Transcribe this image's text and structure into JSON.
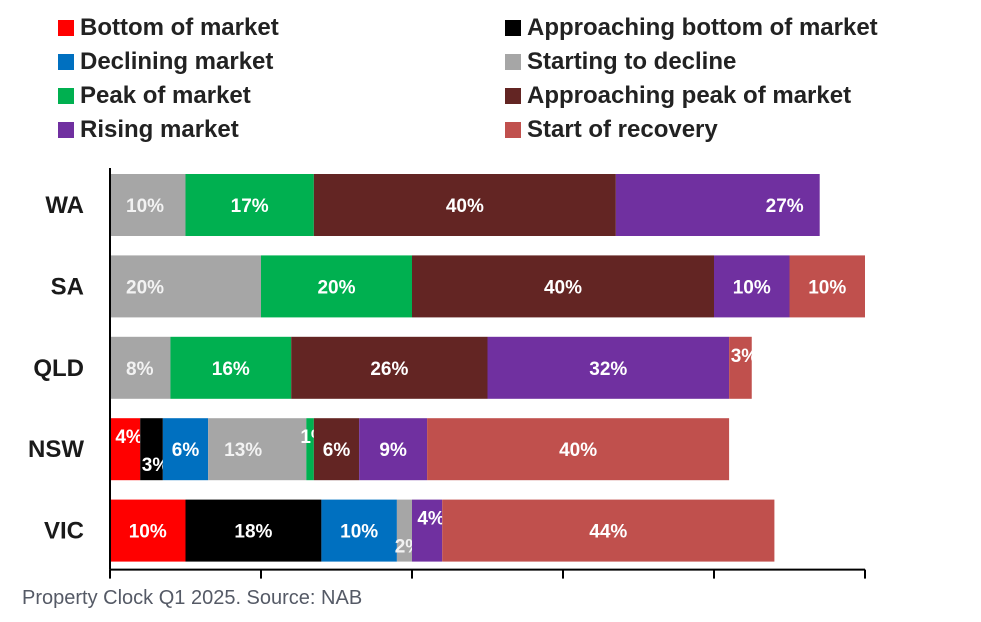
{
  "caption": "Property Clock Q1 2025. Source: NAB",
  "chart_data": {
    "type": "bar",
    "orientation": "horizontal",
    "stacked": true,
    "title": "",
    "xlabel": "",
    "ylabel": "",
    "xlim": [
      0,
      100
    ],
    "grid": false,
    "legend_position": "top",
    "categories": [
      "WA",
      "SA",
      "QLD",
      "NSW",
      "VIC"
    ],
    "series": [
      {
        "name": "Bottom of market",
        "color": "#ff0000",
        "values": [
          0,
          0,
          0,
          4,
          10
        ],
        "labels": [
          "",
          "",
          "",
          "4%",
          "10%"
        ]
      },
      {
        "name": "Approaching bottom of market",
        "color": "#000000",
        "values": [
          0,
          0,
          0,
          3,
          18
        ],
        "labels": [
          "",
          "",
          "",
          "3%",
          "18%"
        ]
      },
      {
        "name": "Declining market",
        "color": "#0070c0",
        "values": [
          0,
          0,
          0,
          6,
          10
        ],
        "labels": [
          "",
          "",
          "",
          "6%",
          "10%"
        ]
      },
      {
        "name": "Starting to decline",
        "color": "#a6a6a6",
        "values": [
          10,
          20,
          8,
          13,
          2
        ],
        "labels": [
          "10%",
          "20%",
          "8%",
          "13%",
          "2%"
        ]
      },
      {
        "name": "Peak of market",
        "color": "#00b050",
        "values": [
          17,
          20,
          16,
          1,
          0
        ],
        "labels": [
          "17%",
          "20%",
          "16%",
          "1%",
          ""
        ]
      },
      {
        "name": "Approaching peak of market",
        "color": "#632523",
        "values": [
          40,
          40,
          26,
          6,
          0
        ],
        "labels": [
          "40%",
          "40%",
          "26%",
          "6%",
          ""
        ]
      },
      {
        "name": "Rising market",
        "color": "#7030a0",
        "values": [
          27,
          10,
          32,
          9,
          4
        ],
        "labels": [
          "27%",
          "10%",
          "32%",
          "9%",
          "4%"
        ]
      },
      {
        "name": "Start of recovery",
        "color": "#c0504d",
        "values": [
          0,
          10,
          3,
          40,
          44
        ],
        "labels": [
          "",
          "10%",
          "3%",
          "40%",
          "44%"
        ]
      }
    ],
    "legend_order": [
      "Bottom of market",
      "Approaching bottom of market",
      "Declining market",
      "Starting to decline",
      "Peak of market",
      "Approaching peak of market",
      "Rising market",
      "Start of recovery"
    ]
  }
}
